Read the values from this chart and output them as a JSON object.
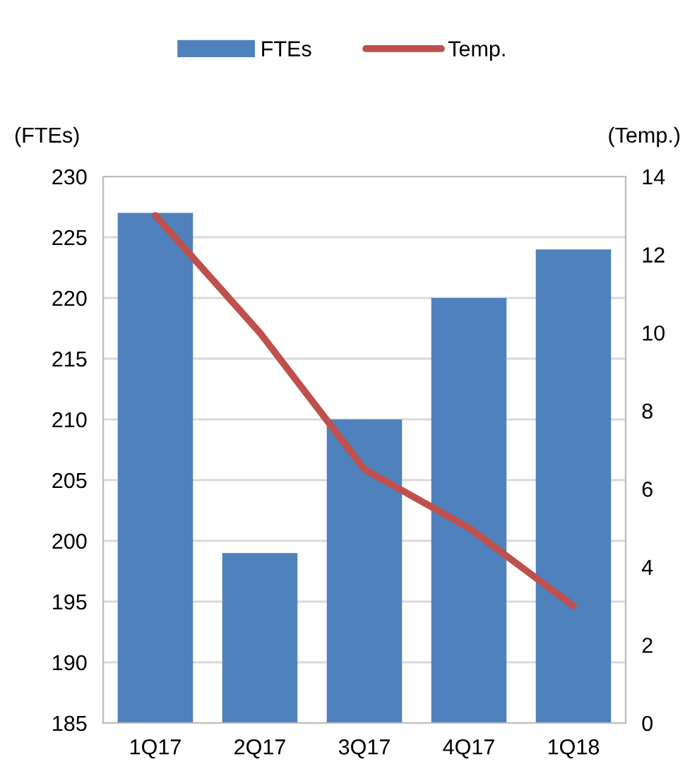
{
  "chart_data": {
    "type": "bar",
    "categories": [
      "1Q17",
      "2Q17",
      "3Q17",
      "4Q17",
      "1Q18"
    ],
    "series": [
      {
        "name": "FTEs",
        "color": "#4f81bd",
        "values": [
          227,
          199,
          210,
          220,
          224
        ]
      },
      {
        "name": "Temp.",
        "type": "line",
        "axis": "y2",
        "color": "#c0504d",
        "values": [
          13,
          10,
          6.5,
          5,
          3
        ]
      }
    ],
    "ylabel": "(FTEs)",
    "y2label": "(Temp.)",
    "ylim": [
      185,
      230
    ],
    "yticks": [
      185,
      190,
      195,
      200,
      205,
      210,
      215,
      220,
      225,
      230
    ],
    "y2lim": [
      0,
      14
    ],
    "y2ticks": [
      0,
      2,
      4,
      6,
      8,
      10,
      12,
      14
    ],
    "grid": "y",
    "legend": "top",
    "marker": "none",
    "line_style": "solid"
  }
}
